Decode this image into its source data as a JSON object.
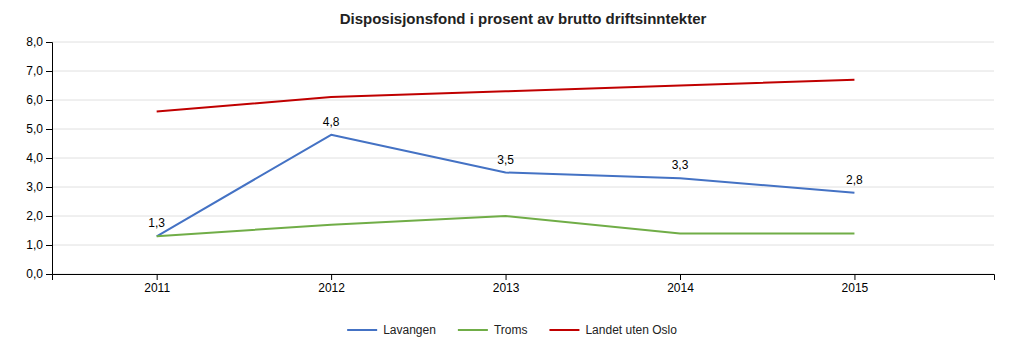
{
  "chart_data": {
    "type": "line",
    "title": "Disposisjonsfond i prosent av brutto driftsinntekter",
    "x": [
      2011,
      2012,
      2013,
      2014,
      2015
    ],
    "xlim": [
      2010.4,
      2015.8
    ],
    "xticks": [
      2011,
      2012,
      2013,
      2014,
      2015
    ],
    "series": [
      {
        "name": "Lavangen",
        "color": "#4472C4",
        "values": [
          1.3,
          4.8,
          3.5,
          3.3,
          2.8
        ],
        "data_labels": true,
        "value_labels": [
          "1,3",
          "4,8",
          "3,5",
          "3,3",
          "2,8"
        ]
      },
      {
        "name": "Troms",
        "color": "#70AD47",
        "values": [
          1.3,
          1.7,
          2.0,
          1.4,
          1.4
        ]
      },
      {
        "name": "Landet uten Oslo",
        "color": "#C00000",
        "values": [
          5.6,
          6.1,
          6.3,
          6.5,
          6.7
        ]
      }
    ],
    "ylim": [
      0.0,
      8.0
    ],
    "yticks": [
      {
        "value": 0.0,
        "label": "0,0"
      },
      {
        "value": 1.0,
        "label": "1,0"
      },
      {
        "value": 2.0,
        "label": "2,0"
      },
      {
        "value": 3.0,
        "label": "3,0"
      },
      {
        "value": 4.0,
        "label": "4,0"
      },
      {
        "value": 5.0,
        "label": "5,0"
      },
      {
        "value": 6.0,
        "label": "6,0"
      },
      {
        "value": 7.0,
        "label": "7,0"
      },
      {
        "value": 8.0,
        "label": "8,0"
      }
    ],
    "grid": "y",
    "legend": "bottom"
  }
}
